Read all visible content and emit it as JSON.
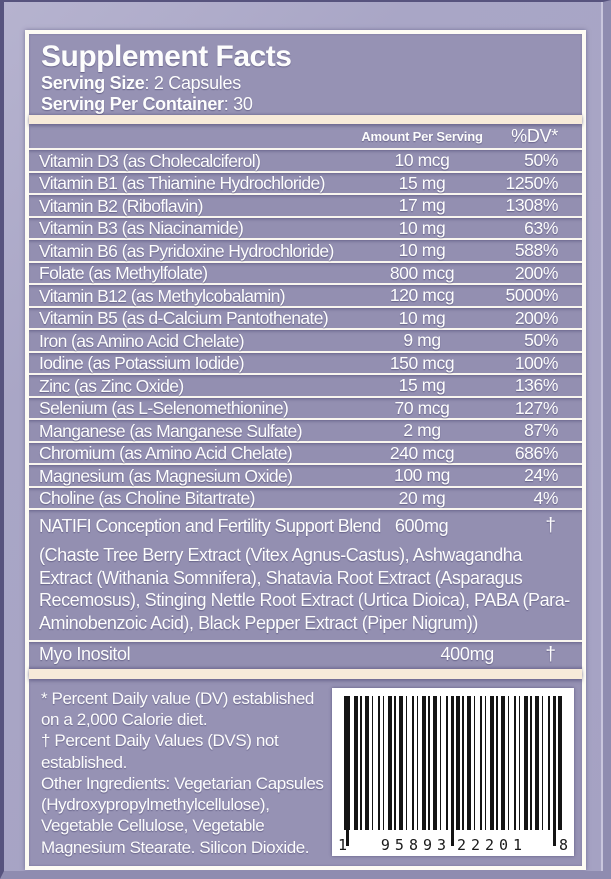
{
  "label": {
    "title": "Supplement Facts",
    "serving_size": {
      "label": "Serving Size",
      "value": ": 2 Capsules"
    },
    "serving_per_container": {
      "label": "Serving Per Container",
      "value": ": 30"
    },
    "columns": {
      "amount": "Amount Per Serving",
      "dv": "%DV*"
    },
    "rows": [
      {
        "name": "Vitamin D3 (as Cholecalciferol)",
        "amount": "10 mcg",
        "dv": "50%"
      },
      {
        "name": "Vitamin B1 (as Thiamine Hydrochloride)",
        "amount": "15 mg",
        "dv": "1250%"
      },
      {
        "name": "Vitamin B2 (Riboflavin)",
        "amount": "17 mg",
        "dv": "1308%"
      },
      {
        "name": "Vitamin B3 (as Niacinamide)",
        "amount": "10 mg",
        "dv": "63%"
      },
      {
        "name": "Vitamin B6 (as Pyridoxine Hydrochloride)",
        "amount": "10 mg",
        "dv": "588%"
      },
      {
        "name": "Folate (as Methylfolate)",
        "amount": "800 mcg",
        "dv": "200%"
      },
      {
        "name": "Vitamin B12 (as Methylcobalamin)",
        "amount": "120 mcg",
        "dv": "5000%"
      },
      {
        "name": "Vitamin B5 (as d-Calcium Pantothenate)",
        "amount": "10 mg",
        "dv": "200%"
      },
      {
        "name": "Iron (as Amino Acid Chelate)",
        "amount": "9 mg",
        "dv": "50%"
      },
      {
        "name": "Iodine (as Potassium Iodide)",
        "amount": "150 mcg",
        "dv": "100%"
      },
      {
        "name": "Zinc (as Zinc Oxide)",
        "amount": "15 mg",
        "dv": "136%"
      },
      {
        "name": "Selenium (as L-Selenomethionine)",
        "amount": "70 mcg",
        "dv": "127%"
      },
      {
        "name": "Manganese (as Manganese Sulfate)",
        "amount": "2 mg",
        "dv": "87%"
      },
      {
        "name": "Chromium (as Amino Acid Chelate)",
        "amount": "240 mcg",
        "dv": "686%"
      },
      {
        "name": "Magnesium (as Magnesium Oxide)",
        "amount": "100 mg",
        "dv": "24%"
      },
      {
        "name": "Choline (as Choline Bitartrate)",
        "amount": "20 mg",
        "dv": "4%"
      }
    ],
    "blend": {
      "name": "NATIFI Conception and Fertility Support Blend",
      "amount": "600mg",
      "dv": "†",
      "description": "(Chaste Tree Berry Extract (Vitex Agnus-Castus), Ashwagandha Extract (Withania Somnifera), Shatavia Root Extract (Asparagus Recemosus), Stinging Nettle Root Extract (Urtica Dioica), PABA (Para-Aminobenzoic Acid), Black Pepper Extract (Piper Nigrum))"
    },
    "myo_inositol": {
      "name": "Myo Inositol",
      "amount": "400mg",
      "dv": "†"
    },
    "footnotes": {
      "dv_note": "* Percent Daily value (DV) established on a 2,000 Calorie diet.",
      "dagger_note": "† Percent Daily Values (DVS) not established.",
      "other_ingredients": "Other Ingredients: Vegetarian Capsules (Hydroxypropylmethylcellulose), Vegetable Cellulose, Vegetable Magnesium Stearate. Silicon Dioxide."
    },
    "barcode": {
      "digit_groups": [
        "1",
        "95893",
        "22201",
        "8"
      ]
    },
    "colors": {
      "background_lavender": "#a7a4c4",
      "panel_purple": "#9692b4",
      "cream_bar": "#f7ead9",
      "line_white": "#f9f6ef",
      "text_white": "#fdfdfd",
      "frame_dark": "#57537e"
    }
  }
}
